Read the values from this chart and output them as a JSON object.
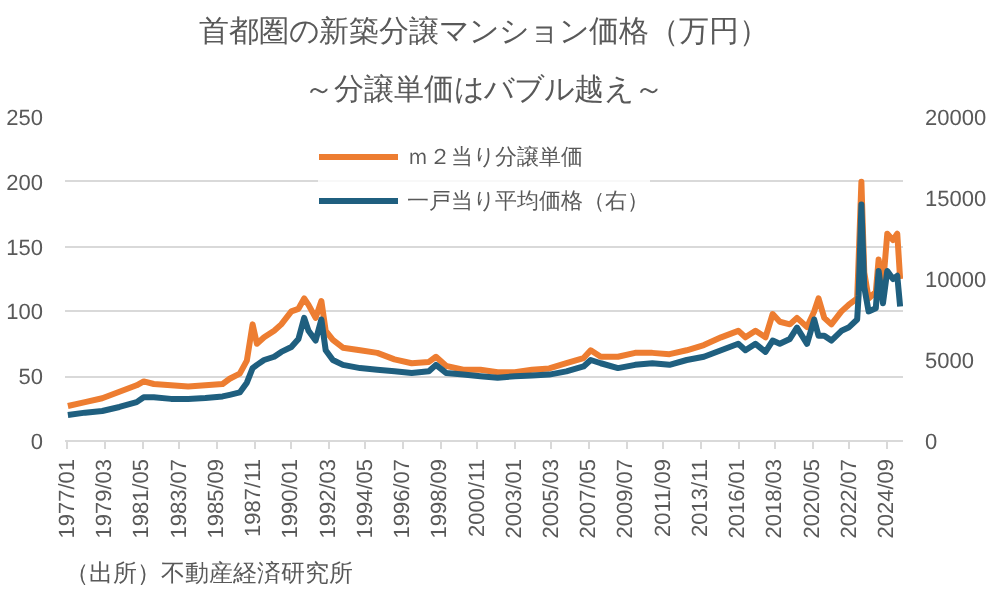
{
  "chart_data": {
    "type": "line",
    "title": "首都圏の新築分譲マンション価格（万円）",
    "subtitle": "～分譲単価はバブル越え～",
    "annotations": [
      "（出所）不動産経済研究所"
    ],
    "series": [
      {
        "name": "ｍ２当り分譲単価",
        "color": "#ed7d31",
        "x": [
          "1977-01",
          "1978-01",
          "1979-01",
          "1980-01",
          "1981-01",
          "1981-06",
          "1982-01",
          "1983-01",
          "1984-01",
          "1985-01",
          "1986-01",
          "1986-06",
          "1987-01",
          "1987-06",
          "1987-10",
          "1988-01",
          "1988-06",
          "1989-01",
          "1989-06",
          "1990-01",
          "1990-06",
          "1990-10",
          "1991-01",
          "1991-06",
          "1991-10",
          "1992-01",
          "1992-06",
          "1993-01",
          "1994-01",
          "1995-01",
          "1996-01",
          "1997-01",
          "1998-01",
          "1998-06",
          "1999-01",
          "2000-01",
          "2001-01",
          "2002-01",
          "2003-01",
          "2004-01",
          "2005-01",
          "2006-01",
          "2007-01",
          "2007-06",
          "2008-01",
          "2009-01",
          "2010-01",
          "2011-01",
          "2012-01",
          "2013-01",
          "2014-01",
          "2015-01",
          "2016-01",
          "2016-06",
          "2017-01",
          "2017-08",
          "2018-01",
          "2018-06",
          "2019-01",
          "2019-06",
          "2020-01",
          "2020-06",
          "2020-09",
          "2021-01",
          "2021-06",
          "2022-01",
          "2022-06",
          "2022-12",
          "2023-01",
          "2023-03",
          "2023-05",
          "2023-08",
          "2024-01",
          "2024-03",
          "2024-06",
          "2024-09",
          "2025-01",
          "2025-04",
          "2025-06"
        ],
        "values": [
          27,
          30,
          33,
          38,
          43,
          46,
          44,
          43,
          42,
          43,
          44,
          48,
          52,
          62,
          90,
          75,
          80,
          85,
          90,
          100,
          102,
          110,
          105,
          95,
          108,
          85,
          78,
          72,
          70,
          68,
          63,
          60,
          61,
          65,
          58,
          55,
          55,
          53,
          53,
          55,
          56,
          60,
          64,
          70,
          65,
          65,
          68,
          68,
          67,
          70,
          74,
          80,
          85,
          80,
          85,
          80,
          98,
          92,
          90,
          95,
          88,
          100,
          110,
          95,
          90,
          100,
          105,
          110,
          140,
          200,
          130,
          110,
          115,
          140,
          120,
          160,
          155,
          160,
          125
        ]
      },
      {
        "name": "一戸当り平均価格（右）",
        "color": "#1f5f7f",
        "axis": "y2",
        "x": [
          "1977-01",
          "1978-01",
          "1979-01",
          "1980-01",
          "1981-01",
          "1981-06",
          "1982-01",
          "1983-01",
          "1984-01",
          "1985-01",
          "1986-01",
          "1986-06",
          "1987-01",
          "1987-06",
          "1987-10",
          "1988-01",
          "1988-06",
          "1989-01",
          "1989-06",
          "1990-01",
          "1990-06",
          "1990-10",
          "1991-01",
          "1991-06",
          "1991-10",
          "1992-01",
          "1992-06",
          "1993-01",
          "1994-01",
          "1995-01",
          "1996-01",
          "1997-01",
          "1998-01",
          "1998-06",
          "1999-01",
          "2000-01",
          "2001-01",
          "2002-01",
          "2003-01",
          "2004-01",
          "2005-01",
          "2006-01",
          "2007-01",
          "2007-06",
          "2008-01",
          "2009-01",
          "2010-01",
          "2011-01",
          "2012-01",
          "2013-01",
          "2014-01",
          "2015-01",
          "2016-01",
          "2016-06",
          "2017-01",
          "2017-08",
          "2018-01",
          "2018-06",
          "2019-01",
          "2019-06",
          "2020-01",
          "2020-06",
          "2020-09",
          "2021-01",
          "2021-06",
          "2022-01",
          "2022-06",
          "2022-12",
          "2023-01",
          "2023-03",
          "2023-05",
          "2023-08",
          "2024-01",
          "2024-03",
          "2024-06",
          "2024-09",
          "2025-01",
          "2025-04",
          "2025-06"
        ],
        "values": [
          1600,
          1750,
          1850,
          2100,
          2400,
          2700,
          2700,
          2600,
          2600,
          2650,
          2750,
          2850,
          3000,
          3600,
          4500,
          4700,
          5000,
          5200,
          5500,
          5800,
          6300,
          7600,
          6800,
          6200,
          7500,
          5600,
          5000,
          4700,
          4500,
          4400,
          4300,
          4200,
          4300,
          4700,
          4200,
          4100,
          4000,
          3900,
          4000,
          4050,
          4100,
          4300,
          4600,
          5000,
          4800,
          4500,
          4700,
          4800,
          4700,
          5000,
          5200,
          5600,
          6000,
          5600,
          6000,
          5500,
          6200,
          6000,
          6300,
          7000,
          6000,
          7500,
          6500,
          6500,
          6200,
          6800,
          7000,
          7500,
          9000,
          14600,
          9500,
          8000,
          8200,
          10500,
          8500,
          10500,
          10000,
          10200,
          8300
        ]
      }
    ],
    "xlim": [
      "1976-11",
      "2025-08"
    ],
    "xticks": [
      {
        "value": "1977-01",
        "label": "1977/01"
      },
      {
        "value": "1979-03",
        "label": "1979/03"
      },
      {
        "value": "1981-05",
        "label": "1981/05"
      },
      {
        "value": "1983-07",
        "label": "1983/07"
      },
      {
        "value": "1985-09",
        "label": "1985/09"
      },
      {
        "value": "1987-11",
        "label": "1987/11"
      },
      {
        "value": "1990-01",
        "label": "1990/01"
      },
      {
        "value": "1992-03",
        "label": "1992/03"
      },
      {
        "value": "1994-05",
        "label": "1994/05"
      },
      {
        "value": "1996-07",
        "label": "1996/07"
      },
      {
        "value": "1998-09",
        "label": "1998/09"
      },
      {
        "value": "2000-11",
        "label": "2000/11"
      },
      {
        "value": "2003-01",
        "label": "2003/01"
      },
      {
        "value": "2005-03",
        "label": "2005/03"
      },
      {
        "value": "2007-05",
        "label": "2007/05"
      },
      {
        "value": "2009-07",
        "label": "2009/07"
      },
      {
        "value": "2011-09",
        "label": "2011/09"
      },
      {
        "value": "2013-11",
        "label": "2013/11"
      },
      {
        "value": "2016-01",
        "label": "2016/01"
      },
      {
        "value": "2018-03",
        "label": "2018/03"
      },
      {
        "value": "2020-05",
        "label": "2020/05"
      },
      {
        "value": "2022-07",
        "label": "2022/07"
      },
      {
        "value": "2024-09",
        "label": "2024/09"
      }
    ],
    "ylim": [
      0,
      250
    ],
    "yticks": [
      0,
      50,
      100,
      150,
      200,
      250
    ],
    "y2lim": [
      0,
      20000
    ],
    "y2ticks": [
      0,
      5000,
      10000,
      15000,
      20000
    ],
    "grid": "y",
    "legend": "top",
    "line_style": "solid",
    "marker": "none"
  }
}
